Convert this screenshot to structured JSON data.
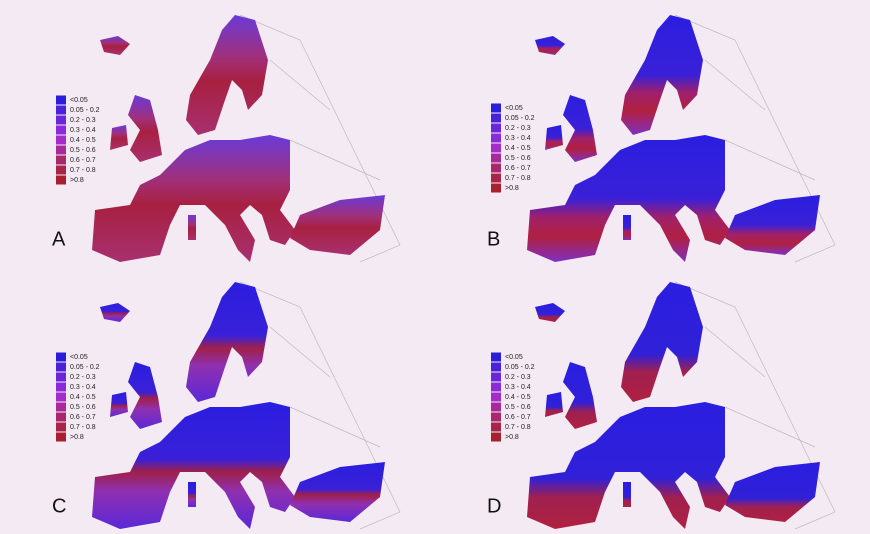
{
  "legend": {
    "labels": [
      "<0.05",
      "0.05 - 0.2",
      "0.2 - 0.3",
      "0.3 - 0.4",
      "0.4 - 0.5",
      "0.5 - 0.6",
      "0.6 - 0.7",
      "0.7 - 0.8",
      ">0.8"
    ],
    "colors": [
      "#2a1ed8",
      "#4a22d8",
      "#6a26d8",
      "#8a2ad8",
      "#a42cc8",
      "#a82a9a",
      "#a8286a",
      "#a82448",
      "#a82030"
    ]
  },
  "panels": [
    {
      "label": "A"
    },
    {
      "label": "B"
    },
    {
      "label": "C"
    },
    {
      "label": "D"
    }
  ]
}
